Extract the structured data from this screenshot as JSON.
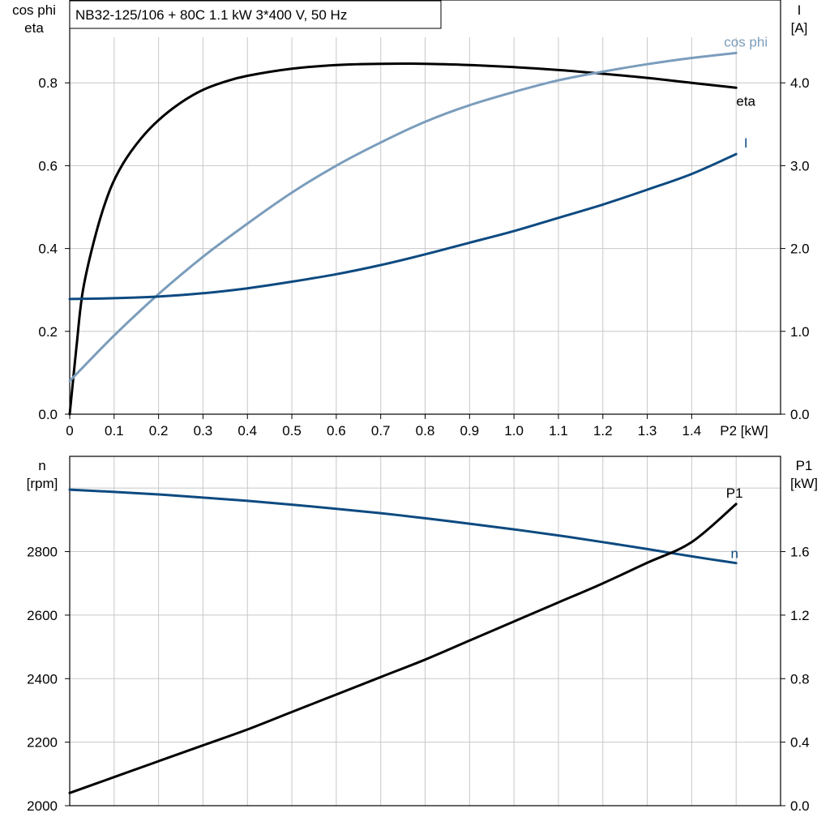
{
  "chart_data": [
    {
      "type": "line",
      "title": "NB32-125/106 + 80C   1.1 kW   3*400 V, 50 Hz",
      "xlabel": "P2 [kW]",
      "x_ticks": [
        "0",
        "0.1",
        "0.2",
        "0.3",
        "0.4",
        "0.5",
        "0.6",
        "0.7",
        "0.8",
        "0.9",
        "1.0",
        "1.1",
        "1.2",
        "1.3",
        "1.4"
      ],
      "xlim": [
        0,
        1.6
      ],
      "left_axis": {
        "label_lines": [
          "cos phi",
          "eta"
        ],
        "ylim": [
          0,
          1.0
        ],
        "ticks": [
          "0.0",
          "0.2",
          "0.4",
          "0.6",
          "0.8"
        ]
      },
      "right_axis": {
        "label_lines": [
          "I",
          "[A]"
        ],
        "ylim": [
          0,
          5.0
        ],
        "ticks": [
          "0.0",
          "1.0",
          "2.0",
          "3.0",
          "4.0"
        ]
      },
      "grid": true,
      "series": [
        {
          "name": "eta",
          "axis": "left",
          "color": "#000000",
          "x": [
            0,
            0.015,
            0.03,
            0.06,
            0.09,
            0.12,
            0.16,
            0.2,
            0.25,
            0.3,
            0.35,
            0.4,
            0.5,
            0.6,
            0.7,
            0.8,
            0.9,
            1.0,
            1.1,
            1.2,
            1.3,
            1.4,
            1.5
          ],
          "y": [
            0.0,
            0.16,
            0.3,
            0.44,
            0.54,
            0.605,
            0.665,
            0.71,
            0.752,
            0.783,
            0.803,
            0.817,
            0.834,
            0.843,
            0.846,
            0.846,
            0.843,
            0.838,
            0.831,
            0.822,
            0.812,
            0.8,
            0.788
          ]
        },
        {
          "name": "cos phi",
          "axis": "left",
          "color": "#7b9dbc",
          "x": [
            0,
            0.1,
            0.2,
            0.3,
            0.4,
            0.5,
            0.6,
            0.7,
            0.8,
            0.9,
            1.0,
            1.1,
            1.2,
            1.3,
            1.4,
            1.5
          ],
          "y": [
            0.08,
            0.19,
            0.29,
            0.38,
            0.46,
            0.535,
            0.6,
            0.656,
            0.706,
            0.746,
            0.778,
            0.806,
            0.827,
            0.845,
            0.86,
            0.872
          ]
        },
        {
          "name": "I",
          "axis": "right",
          "color": "#0d4a80",
          "x": [
            0,
            0.1,
            0.2,
            0.3,
            0.4,
            0.5,
            0.6,
            0.7,
            0.8,
            0.9,
            1.0,
            1.1,
            1.2,
            1.3,
            1.4,
            1.5
          ],
          "y": [
            1.39,
            1.4,
            1.42,
            1.46,
            1.52,
            1.6,
            1.69,
            1.8,
            1.93,
            2.07,
            2.21,
            2.37,
            2.53,
            2.71,
            2.9,
            3.14
          ]
        }
      ]
    },
    {
      "type": "line",
      "xlim": [
        0,
        1.6
      ],
      "left_axis": {
        "label_lines": [
          "n",
          "[rpm]"
        ],
        "ylim": [
          2000,
          3100
        ],
        "ticks": [
          "2000",
          "2200",
          "2400",
          "2600",
          "2800"
        ]
      },
      "right_axis": {
        "label_lines": [
          "P1",
          "[kW]"
        ],
        "ylim": [
          0.0,
          2.2
        ],
        "ticks": [
          "0.0",
          "0.4",
          "0.8",
          "1.2",
          "1.6"
        ]
      },
      "grid": true,
      "series": [
        {
          "name": "n",
          "axis": "left",
          "color": "#0d4a80",
          "x": [
            0,
            0.1,
            0.2,
            0.3,
            0.4,
            0.5,
            0.6,
            0.7,
            0.8,
            0.9,
            1.0,
            1.1,
            1.2,
            1.3,
            1.4,
            1.5
          ],
          "y": [
            2995,
            2988,
            2980,
            2970,
            2960,
            2948,
            2935,
            2921,
            2905,
            2888,
            2870,
            2851,
            2830,
            2808,
            2785,
            2764
          ]
        },
        {
          "name": "P1",
          "axis": "right",
          "color": "#000000",
          "x": [
            0,
            0.1,
            0.2,
            0.3,
            0.4,
            0.5,
            0.6,
            0.7,
            0.8,
            0.9,
            1.0,
            1.1,
            1.2,
            1.3,
            1.4,
            1.5
          ],
          "y": [
            0.08,
            0.18,
            0.28,
            0.38,
            0.48,
            0.59,
            0.7,
            0.81,
            0.92,
            1.04,
            1.16,
            1.28,
            1.4,
            1.53,
            1.66,
            1.9
          ]
        }
      ]
    }
  ]
}
